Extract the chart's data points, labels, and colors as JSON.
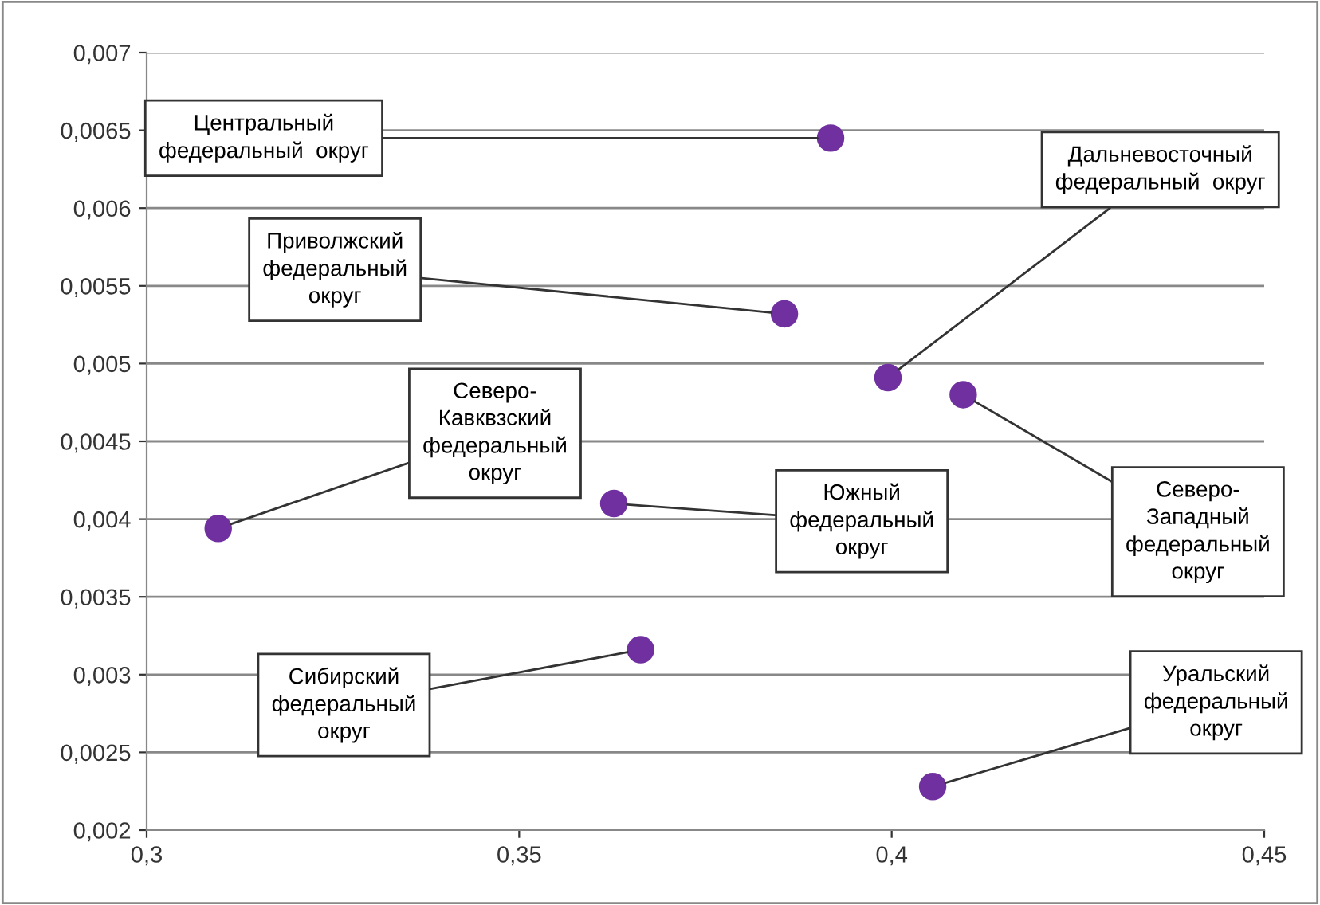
{
  "chart_data": {
    "type": "scatter",
    "marker": "circle",
    "grid": "y",
    "legend": false,
    "series": [
      {
        "color": "#7030a0",
        "x": [
          0.3918,
          0.3856,
          0.3995,
          0.4096,
          0.3096,
          0.3627,
          0.3663,
          0.4055
        ],
        "values": [
          0.00645,
          0.00532,
          0.00491,
          0.0048,
          0.00394,
          0.0041,
          0.00316,
          0.00228
        ]
      }
    ],
    "xlim": [
      0.3,
      0.45
    ],
    "ylim": [
      0.002,
      0.007
    ],
    "xticks": [
      {
        "value": 0.3,
        "label": "0,3"
      },
      {
        "value": 0.35,
        "label": "0,35"
      },
      {
        "value": 0.4,
        "label": "0,4"
      },
      {
        "value": 0.45,
        "label": "0,45"
      }
    ],
    "yticks": [
      {
        "value": 0.002,
        "label": "0,002"
      },
      {
        "value": 0.0025,
        "label": "0,0025"
      },
      {
        "value": 0.003,
        "label": "0,003"
      },
      {
        "value": 0.0035,
        "label": "0,0035"
      },
      {
        "value": 0.004,
        "label": "0,004"
      },
      {
        "value": 0.0045,
        "label": "0,0045"
      },
      {
        "value": 0.005,
        "label": "0,005"
      },
      {
        "value": 0.0055,
        "label": "0,0055"
      },
      {
        "value": 0.006,
        "label": "0,006"
      },
      {
        "value": 0.0065,
        "label": "0,0065"
      },
      {
        "value": 0.007,
        "label": "0,007"
      }
    ],
    "annotations": [
      {
        "text": "Центральный\nфедеральный  округ",
        "x": 0.3918,
        "y": 0.00645
      },
      {
        "text": "Приволжский\nфедеральный\nокруг",
        "x": 0.3856,
        "y": 0.00532
      },
      {
        "text": "Дальневосточный\nфедеральный  округ",
        "x": 0.3995,
        "y": 0.00491
      },
      {
        "text": "Северо-\nЗападный\nфедеральный\nокруг",
        "x": 0.4096,
        "y": 0.0048
      },
      {
        "text": "Северо-\nКавквзский\nфедеральный\nокруг",
        "x": 0.3096,
        "y": 0.00394
      },
      {
        "text": "Южный\nфедеральный\nокруг",
        "x": 0.3627,
        "y": 0.0041
      },
      {
        "text": "Сибирский\nфедеральный\nокруг",
        "x": 0.3663,
        "y": 0.00316
      },
      {
        "text": "Уральский\nфедеральный\nокруг",
        "x": 0.4055,
        "y": 0.00228
      }
    ]
  }
}
